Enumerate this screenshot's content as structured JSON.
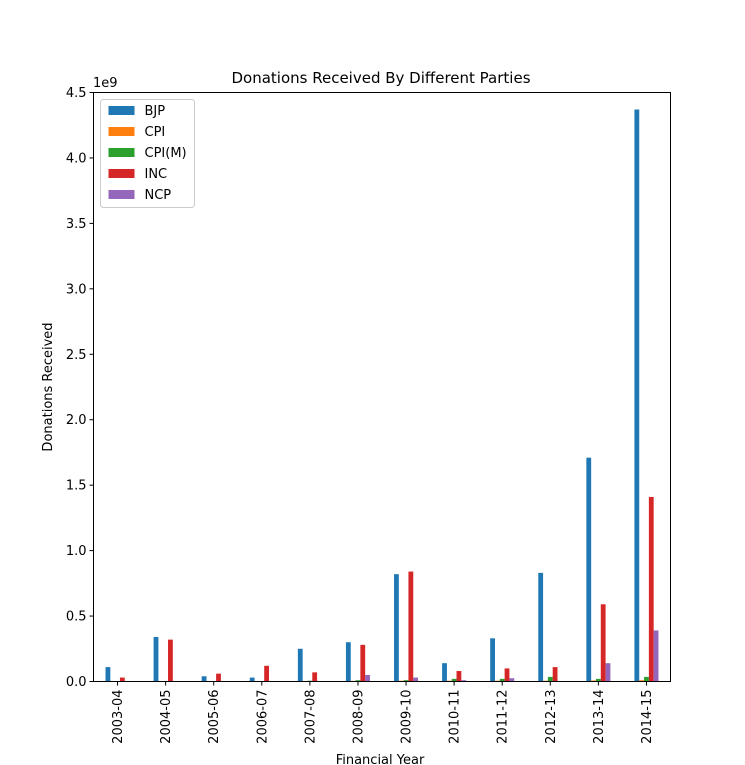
{
  "chart_data": {
    "type": "bar",
    "title": "Donations Received By Different Parties",
    "xlabel": "Financial Year",
    "ylabel": "Donations Received",
    "y_offset_label": "1e9",
    "ylim": [
      0,
      4.5
    ],
    "y_scale_factor": 1000000000,
    "yticks": [
      "0.0",
      "0.5",
      "1.0",
      "1.5",
      "2.0",
      "2.5",
      "3.0",
      "3.5",
      "4.0",
      "4.5"
    ],
    "grid": false,
    "legend_position": "top-left",
    "categories": [
      "2003-04",
      "2004-05",
      "2005-06",
      "2006-07",
      "2007-08",
      "2008-09",
      "2009-10",
      "2010-11",
      "2011-12",
      "2012-13",
      "2013-14",
      "2014-15"
    ],
    "series": [
      {
        "name": "BJP",
        "color": "#1f77b4",
        "values": [
          0.11,
          0.34,
          0.04,
          0.03,
          0.25,
          0.3,
          0.82,
          0.14,
          0.33,
          0.83,
          1.71,
          4.37
        ]
      },
      {
        "name": "CPI",
        "color": "#ff7f0e",
        "values": [
          0.002,
          0.001,
          0.001,
          0.001,
          0.004,
          0.005,
          0.006,
          0.006,
          0.006,
          0.006,
          0.008,
          0.01
        ]
      },
      {
        "name": "CPI(M)",
        "color": "#2ca02c",
        "values": [
          0.003,
          0.003,
          0.004,
          0.004,
          0.006,
          0.01,
          0.01,
          0.02,
          0.02,
          0.035,
          0.02,
          0.035
        ]
      },
      {
        "name": "INC",
        "color": "#d62728",
        "values": [
          0.03,
          0.32,
          0.06,
          0.12,
          0.07,
          0.28,
          0.84,
          0.08,
          0.1,
          0.11,
          0.59,
          1.41
        ]
      },
      {
        "name": "NCP",
        "color": "#9467bd",
        "values": [
          0.0,
          0.0,
          0.0,
          0.0,
          0.003,
          0.05,
          0.03,
          0.01,
          0.025,
          0.0,
          0.14,
          0.39
        ]
      }
    ]
  }
}
